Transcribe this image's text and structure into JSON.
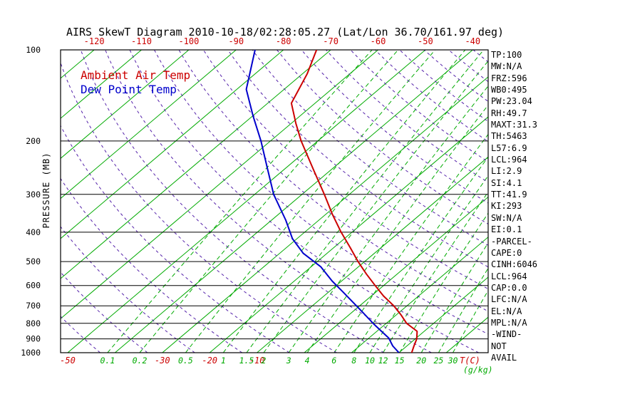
{
  "title": "AIRS SkewT Diagram 2010-10-18/02:28:05.27 (Lat/Lon 36.70/161.97 deg)",
  "colors": {
    "green": "#00aa00",
    "red": "#cc0000",
    "blue": "#0000cc",
    "adiabat": "#5522aa",
    "black": "#000000"
  },
  "stats": [
    "TP:100",
    "MW:N/A",
    "FRZ:596",
    "WB0:495",
    "PW:23.04",
    "RH:49.7",
    "MAXT:31.3",
    "TH:5463",
    "L57:6.9",
    "LCL:964",
    "LI:2.9",
    "SI:4.1",
    "TT:41.9",
    "KI:293",
    "SW:N/A",
    "EI:0.1",
    "-PARCEL-",
    "CAPE:0",
    "CINH:6046",
    "LCL:964",
    "CAP:0.0",
    "LFC:N/A",
    "EL:N/A",
    "MPL:N/A",
    "-WIND-",
    "NOT",
    "AVAIL"
  ],
  "chart_data": {
    "type": "line",
    "variant": "skew-t-log-p",
    "title": "AIRS SkewT Diagram 2010-10-18/02:28:05.27 (Lat/Lon 36.70/161.97 deg)",
    "ylabel": "PRESSURE (MB)",
    "xlabel_temp": "T(C)",
    "xlabel_mixing": "(g/kg)",
    "grid": "skew-t background: solid green isotherms, dashed green saturation mixing-ratio lines, dashed purple dry adiabats, horizontal black isobars",
    "legend_position": "top-left inside plot",
    "pressure_ticks_mb": [
      100,
      200,
      300,
      400,
      500,
      600,
      700,
      800,
      900,
      1000
    ],
    "p_axis_range_mb": [
      100,
      1000
    ],
    "top_temp_ticks_c": [
      -120,
      -110,
      -100,
      -90,
      -80,
      -70,
      -60,
      -50,
      -40
    ],
    "bottom_temp_ticks_c": [
      -50,
      -30,
      -20,
      -10
    ],
    "mixing_ratio_lines_gkg": [
      0.1,
      0.2,
      0.5,
      1,
      1.5,
      2,
      3,
      4,
      6,
      8,
      10,
      12,
      15,
      20,
      25,
      30
    ],
    "isotherm_step_c": 10,
    "isotherm_range_c": [
      -160,
      40
    ],
    "dry_adiabats_theta_k": {
      "min": 230,
      "max": 460,
      "step": 10
    },
    "series": [
      {
        "name": "Ambient Air Temp",
        "color": "#cc0000",
        "points_p_t": [
          [
            100,
            -73
          ],
          [
            120,
            -69
          ],
          [
            150,
            -65
          ],
          [
            175,
            -59
          ],
          [
            200,
            -53.5
          ],
          [
            250,
            -43.5
          ],
          [
            300,
            -35.3
          ],
          [
            350,
            -28.5
          ],
          [
            400,
            -22.3
          ],
          [
            450,
            -16.5
          ],
          [
            500,
            -11.4
          ],
          [
            550,
            -6.5
          ],
          [
            600,
            -1.8
          ],
          [
            650,
            2.6
          ],
          [
            700,
            7.2
          ],
          [
            750,
            11.0
          ],
          [
            800,
            14.3
          ],
          [
            850,
            18.5
          ],
          [
            900,
            20.3
          ],
          [
            950,
            21.5
          ],
          [
            1000,
            22.7
          ]
        ]
      },
      {
        "name": "Dew Point Temp",
        "color": "#0000cc",
        "points_p_t": [
          [
            100,
            -86
          ],
          [
            135,
            -78
          ],
          [
            165,
            -70
          ],
          [
            200,
            -62
          ],
          [
            245,
            -54
          ],
          [
            300,
            -46
          ],
          [
            365,
            -37
          ],
          [
            420,
            -31
          ],
          [
            470,
            -25
          ],
          [
            520,
            -18
          ],
          [
            580,
            -12
          ],
          [
            630,
            -7
          ],
          [
            720,
            1.0
          ],
          [
            805,
            7.6
          ],
          [
            895,
            14.2
          ],
          [
            950,
            17.0
          ],
          [
            1000,
            20.0
          ]
        ]
      }
    ]
  }
}
